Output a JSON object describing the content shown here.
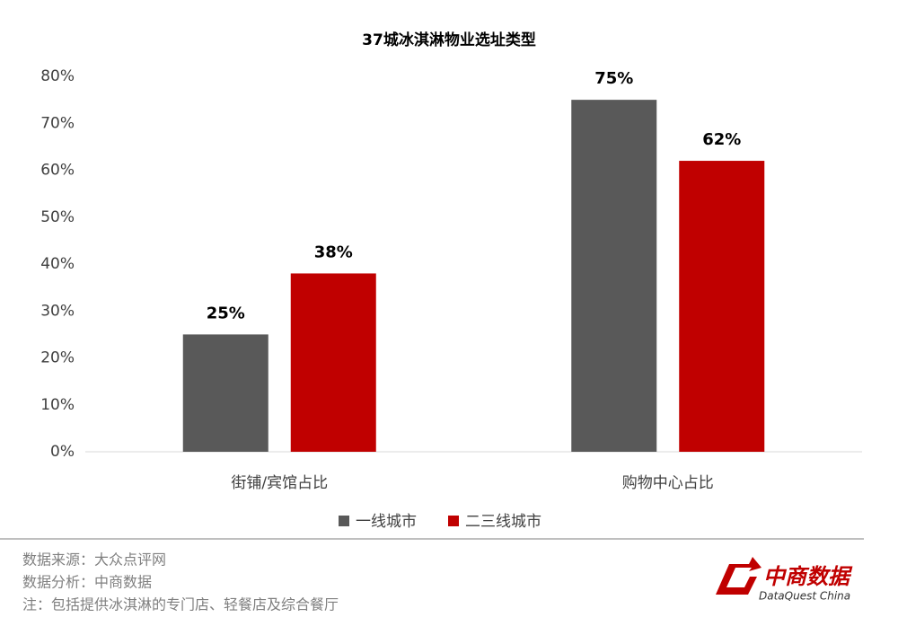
{
  "chart_data": {
    "type": "bar",
    "title": "37城冰淇淋物业选址类型",
    "categories": [
      "街铺/宾馆占比",
      "购物中心占比"
    ],
    "series": [
      {
        "name": "一线城市",
        "color": "#595959",
        "values": [
          25,
          75
        ],
        "value_labels": [
          "25%",
          "75%"
        ]
      },
      {
        "name": "二三线城市",
        "color": "#c00000",
        "values": [
          38,
          62
        ],
        "value_labels": [
          "38%",
          "62%"
        ]
      }
    ],
    "ylim": [
      0,
      80
    ],
    "yticks": [
      {
        "value": 0,
        "label": "0%"
      },
      {
        "value": 10,
        "label": "10%"
      },
      {
        "value": 20,
        "label": "20%"
      },
      {
        "value": 30,
        "label": "30%"
      },
      {
        "value": 40,
        "label": "40%"
      },
      {
        "value": 50,
        "label": "50%"
      },
      {
        "value": 60,
        "label": "60%"
      },
      {
        "value": 70,
        "label": "70%"
      },
      {
        "value": 80,
        "label": "80%"
      }
    ],
    "grid": false,
    "legend": "bottom"
  },
  "notes": [
    "数据来源：大众点评网",
    "数据分析：中商数据",
    "注：包括提供冰淇淋的专门店、轻餐店及综合餐厅"
  ],
  "logo": {
    "name": "中商数据",
    "subtitle": "DataQuest China"
  }
}
